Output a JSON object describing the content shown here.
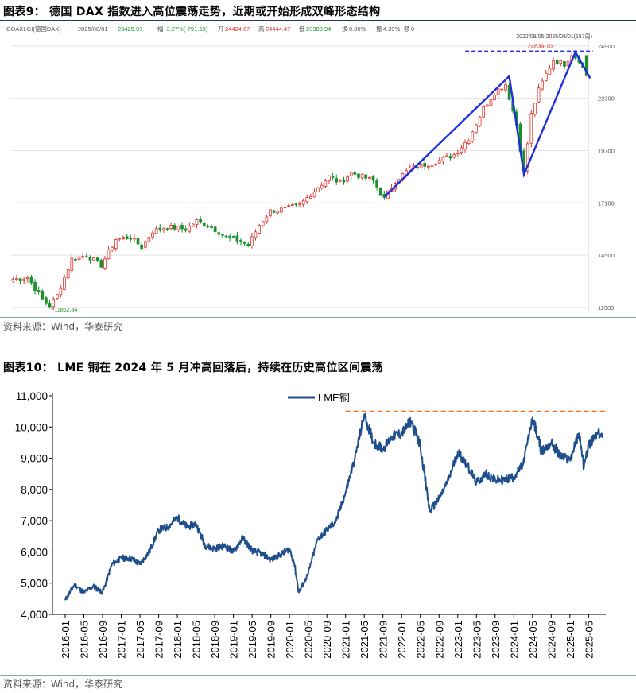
{
  "figure1": {
    "title": "图表9： 德国 DAX 指数进入高位震荡走势，近期或开始形成双峰形态结构",
    "source": "资料来源：Wind，华泰研究",
    "header": {
      "code": "GDAXI.GI(德国DAX)",
      "date": "2025/08/01",
      "close": "23425.97",
      "change_label": "幅",
      "change": "-3.27%(-791.53)",
      "open_label": "开",
      "open": "24424.67",
      "high_label": "高",
      "high": "24444.47",
      "low_label": "低",
      "low": "23380.94",
      "fill_label": "换",
      "fill": "0.00%",
      "amp_label": "振",
      "amp": "4.39%",
      "vol_label": "额",
      "vol": "0"
    },
    "range_label": "2022/08/05-2025/08/01(157周)",
    "high_annotation": "24639.10",
    "low_annotation": "11862.84",
    "colors": {
      "up": "#e0342c",
      "down": "#1a8f2b",
      "pattern": "#1f2de0",
      "level": "#1f2de0"
    },
    "chart_data": {
      "type": "candlestick",
      "y_ticks": [
        11900,
        14500,
        17100,
        19700,
        22300,
        24900
      ],
      "ylim": [
        11700,
        25250
      ],
      "n_weeks": 157,
      "x_start": "2022/08/05",
      "x_end": "2025/08/01",
      "anchors": [
        {
          "week": 0,
          "value": 13300
        },
        {
          "week": 4,
          "value": 13400
        },
        {
          "week": 8,
          "value": 12300
        },
        {
          "week": 10,
          "value": 12000
        },
        {
          "week": 12,
          "value": 12500
        },
        {
          "week": 16,
          "value": 14300
        },
        {
          "week": 20,
          "value": 14500
        },
        {
          "week": 24,
          "value": 14000
        },
        {
          "week": 28,
          "value": 15300
        },
        {
          "week": 32,
          "value": 15400
        },
        {
          "week": 35,
          "value": 14900
        },
        {
          "week": 38,
          "value": 15700
        },
        {
          "week": 42,
          "value": 15900
        },
        {
          "week": 47,
          "value": 15800
        },
        {
          "week": 50,
          "value": 16200
        },
        {
          "week": 54,
          "value": 15900
        },
        {
          "week": 58,
          "value": 15400
        },
        {
          "week": 62,
          "value": 15200
        },
        {
          "week": 64,
          "value": 15000
        },
        {
          "week": 67,
          "value": 16000
        },
        {
          "week": 70,
          "value": 16700
        },
        {
          "week": 74,
          "value": 16800
        },
        {
          "week": 78,
          "value": 17000
        },
        {
          "week": 82,
          "value": 17700
        },
        {
          "week": 86,
          "value": 18400
        },
        {
          "week": 89,
          "value": 18100
        },
        {
          "week": 92,
          "value": 18600
        },
        {
          "week": 95,
          "value": 18400
        },
        {
          "week": 98,
          "value": 18200
        },
        {
          "week": 101,
          "value": 17300
        },
        {
          "week": 104,
          "value": 18200
        },
        {
          "week": 108,
          "value": 18800
        },
        {
          "week": 112,
          "value": 19000
        },
        {
          "week": 116,
          "value": 19200
        },
        {
          "week": 120,
          "value": 19500
        },
        {
          "week": 124,
          "value": 20300
        },
        {
          "week": 128,
          "value": 21800
        },
        {
          "week": 131,
          "value": 22600
        },
        {
          "week": 134,
          "value": 23000
        },
        {
          "week": 137,
          "value": 21000
        },
        {
          "week": 139,
          "value": 18600
        },
        {
          "week": 141,
          "value": 21500
        },
        {
          "week": 143,
          "value": 22700
        },
        {
          "week": 145,
          "value": 23500
        },
        {
          "week": 147,
          "value": 24200
        },
        {
          "week": 150,
          "value": 24000
        },
        {
          "week": 152,
          "value": 24500
        },
        {
          "week": 154,
          "value": 24200
        },
        {
          "week": 156,
          "value": 23426
        }
      ],
      "pattern_line": [
        {
          "week": 101,
          "value": 17400
        },
        {
          "week": 135,
          "value": 23400
        },
        {
          "week": 139,
          "value": 18500
        },
        {
          "week": 153,
          "value": 24600
        },
        {
          "week": 157,
          "value": 23300
        }
      ],
      "resistance_level": 24639.1
    }
  },
  "figure2": {
    "title": "图表10： LME 铜在 2024 年 5 月冲高回落后，持续在历史高位区间震荡",
    "source": "资料来源：Wind，华泰研究",
    "legend": "LME铜",
    "colors": {
      "line": "#1f4e8c",
      "ref": "#ed7d31"
    },
    "chart_data": {
      "type": "line",
      "y_ticks": [
        "4,000",
        "5,000",
        "6,000",
        "7,000",
        "8,000",
        "9,000",
        "10,000",
        "11,000"
      ],
      "ylim": [
        4000,
        11000
      ],
      "x_ticks": [
        "2016-01",
        "2016-05",
        "2016-09",
        "2017-01",
        "2017-05",
        "2017-09",
        "2018-01",
        "2018-05",
        "2018-09",
        "2019-01",
        "2019-05",
        "2019-09",
        "2020-01",
        "2020-05",
        "2020-09",
        "2021-01",
        "2021-05",
        "2021-09",
        "2022-01",
        "2022-05",
        "2022-09",
        "2023-01",
        "2023-05",
        "2023-09",
        "2024-01",
        "2024-05",
        "2024-09",
        "2025-01",
        "2025-05"
      ],
      "series": [
        {
          "name": "LME铜",
          "points": [
            [
              "2016-01",
              4450
            ],
            [
              "2016-03",
              4950
            ],
            [
              "2016-05",
              4700
            ],
            [
              "2016-07",
              4900
            ],
            [
              "2016-09",
              4700
            ],
            [
              "2016-11",
              5600
            ],
            [
              "2017-01",
              5800
            ],
            [
              "2017-03",
              5800
            ],
            [
              "2017-05",
              5600
            ],
            [
              "2017-07",
              6000
            ],
            [
              "2017-09",
              6700
            ],
            [
              "2017-11",
              6800
            ],
            [
              "2018-01",
              7100
            ],
            [
              "2018-03",
              6800
            ],
            [
              "2018-05",
              6900
            ],
            [
              "2018-07",
              6200
            ],
            [
              "2018-09",
              6100
            ],
            [
              "2018-11",
              6200
            ],
            [
              "2019-01",
              6000
            ],
            [
              "2019-03",
              6450
            ],
            [
              "2019-05",
              6050
            ],
            [
              "2019-07",
              5950
            ],
            [
              "2019-09",
              5750
            ],
            [
              "2019-11",
              5900
            ],
            [
              "2020-01",
              6100
            ],
            [
              "2020-02",
              5650
            ],
            [
              "2020-03",
              4700
            ],
            [
              "2020-05",
              5300
            ],
            [
              "2020-07",
              6400
            ],
            [
              "2020-09",
              6700
            ],
            [
              "2020-11",
              7000
            ],
            [
              "2021-01",
              7900
            ],
            [
              "2021-03",
              9000
            ],
            [
              "2021-05",
              10400
            ],
            [
              "2021-07",
              9500
            ],
            [
              "2021-09",
              9300
            ],
            [
              "2021-11",
              9700
            ],
            [
              "2022-01",
              9800
            ],
            [
              "2022-03",
              10200
            ],
            [
              "2022-05",
              9400
            ],
            [
              "2022-07",
              7300
            ],
            [
              "2022-09",
              7700
            ],
            [
              "2022-11",
              8300
            ],
            [
              "2023-01",
              9200
            ],
            [
              "2023-03",
              8800
            ],
            [
              "2023-05",
              8200
            ],
            [
              "2023-07",
              8500
            ],
            [
              "2023-09",
              8300
            ],
            [
              "2023-11",
              8300
            ],
            [
              "2024-01",
              8400
            ],
            [
              "2024-03",
              8800
            ],
            [
              "2024-05",
              10300
            ],
            [
              "2024-07",
              9200
            ],
            [
              "2024-09",
              9500
            ],
            [
              "2024-11",
              9050
            ],
            [
              "2025-01",
              8950
            ],
            [
              "2025-03",
              9800
            ],
            [
              "2025-04",
              8700
            ],
            [
              "2025-05",
              9400
            ],
            [
              "2025-07",
              9800
            ],
            [
              "2025-08",
              9650
            ]
          ]
        }
      ],
      "reference_line": 10500
    }
  }
}
